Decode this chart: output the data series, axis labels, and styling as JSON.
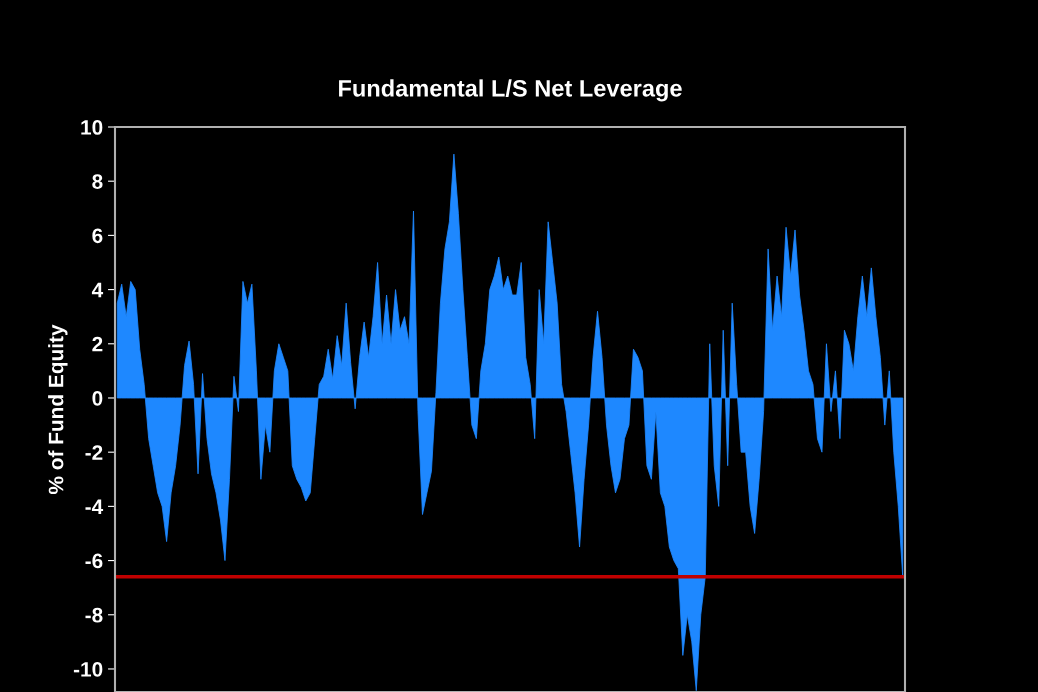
{
  "chart_data": {
    "type": "area",
    "title": "Fundamental L/S Net Leverage",
    "ylabel": "% of Fund Equity",
    "categories": [
      null,
      null,
      null,
      null,
      null,
      null,
      null,
      null,
      null,
      null,
      null,
      null,
      null,
      null,
      null,
      null,
      null,
      null,
      null,
      null,
      null,
      null,
      null,
      null,
      null,
      null,
      null,
      null,
      null,
      null,
      null,
      null,
      null,
      null,
      null,
      null,
      null,
      null,
      null,
      null,
      null,
      null,
      null,
      null,
      null,
      null,
      null,
      null,
      null,
      null,
      null,
      null,
      null,
      null,
      null,
      null,
      null,
      null,
      null,
      null,
      null,
      null,
      null,
      null,
      null,
      null,
      null,
      null,
      null,
      null,
      null,
      null,
      null,
      null,
      null,
      null,
      null,
      null,
      null,
      null,
      null,
      null,
      null,
      null,
      null,
      null,
      null,
      null,
      null,
      null,
      null,
      null,
      null,
      null,
      null,
      null,
      null,
      null,
      null,
      null,
      null,
      null,
      null,
      null,
      null,
      null,
      null,
      null,
      null,
      null,
      null,
      null,
      null,
      null,
      null,
      null,
      null,
      null,
      null,
      null,
      null,
      null,
      null,
      null,
      null,
      null,
      null,
      null,
      null,
      null,
      null,
      null,
      null,
      null,
      null,
      null,
      null,
      null,
      null,
      null,
      null,
      null,
      null,
      null,
      null,
      null,
      null,
      null,
      null,
      null,
      null,
      null,
      null,
      null,
      null,
      null,
      null,
      null,
      null,
      null,
      null,
      null,
      null,
      null,
      null,
      null,
      null,
      null,
      null,
      null,
      null,
      null,
      null,
      null,
      null,
      null
    ],
    "series": [
      {
        "color": "#1e88ff",
        "values": [
          3.5,
          4.2,
          3.0,
          4.3,
          4.0,
          1.8,
          0.5,
          -1.5,
          -2.5,
          -3.5,
          -4.0,
          -5.3,
          -3.5,
          -2.5,
          -1.0,
          1.2,
          2.1,
          0.5,
          -2.8,
          0.9,
          -1.5,
          -2.8,
          -3.5,
          -4.5,
          -6.0,
          -3.0,
          0.8,
          -0.5,
          4.3,
          3.5,
          4.2,
          1.0,
          -3.0,
          -1.0,
          -2.0,
          1.0,
          2.0,
          1.5,
          1.0,
          -2.5,
          -3.0,
          -3.3,
          -3.8,
          -3.5,
          -1.5,
          0.5,
          0.8,
          1.8,
          0.7,
          2.3,
          1.2,
          3.5,
          1.3,
          -0.4,
          1.5,
          2.8,
          1.5,
          3.0,
          5.0,
          2.0,
          3.8,
          2.0,
          4.0,
          2.5,
          3.0,
          2.0,
          6.9,
          -0.5,
          -4.3,
          -3.5,
          -2.7,
          0.2,
          3.5,
          5.5,
          6.5,
          9.0,
          6.8,
          4.0,
          1.5,
          -1.0,
          -1.5,
          1.0,
          2.0,
          4.0,
          4.5,
          5.2,
          4.0,
          4.5,
          3.8,
          3.8,
          5.0,
          1.5,
          0.5,
          -1.5,
          4.0,
          2.0,
          6.5,
          5.0,
          3.5,
          0.5,
          -0.5,
          -2.0,
          -3.5,
          -5.5,
          -3.0,
          -1.0,
          1.5,
          3.2,
          1.5,
          -1.0,
          -2.5,
          -3.5,
          -3.0,
          -1.5,
          -1.0,
          1.8,
          1.5,
          1.0,
          -2.5,
          -3.0,
          -0.5,
          -3.5,
          -4.0,
          -5.5,
          -6.0,
          -6.3,
          -9.5,
          -8.0,
          -9.0,
          -10.8,
          -8.0,
          -6.6,
          2.0,
          -2.5,
          -4.0,
          2.5,
          -2.5,
          3.5,
          0.5,
          -2.0,
          -2.0,
          -4.0,
          -5.0,
          -3.0,
          -0.5,
          5.5,
          2.5,
          4.5,
          3.0,
          6.3,
          4.5,
          6.2,
          3.8,
          2.5,
          1.0,
          0.5,
          -1.5,
          -2.0,
          2.0,
          -0.5,
          1.0,
          -1.5,
          2.5,
          2.0,
          1.0,
          3.0,
          4.5,
          3.0,
          4.8,
          3.0,
          1.5,
          -1.0,
          1.0,
          -2.0,
          -4.0,
          -6.6
        ]
      }
    ],
    "ylim": [
      -10.85,
      10
    ],
    "yticks": [
      -10,
      -8,
      -6,
      -4,
      -2,
      0,
      2,
      4,
      6,
      8,
      10
    ],
    "ref_lines": [
      {
        "axis": "y",
        "value": -6.6,
        "color": "#c00000"
      }
    ],
    "tick_labels": "y",
    "grid": false,
    "legend": false
  }
}
